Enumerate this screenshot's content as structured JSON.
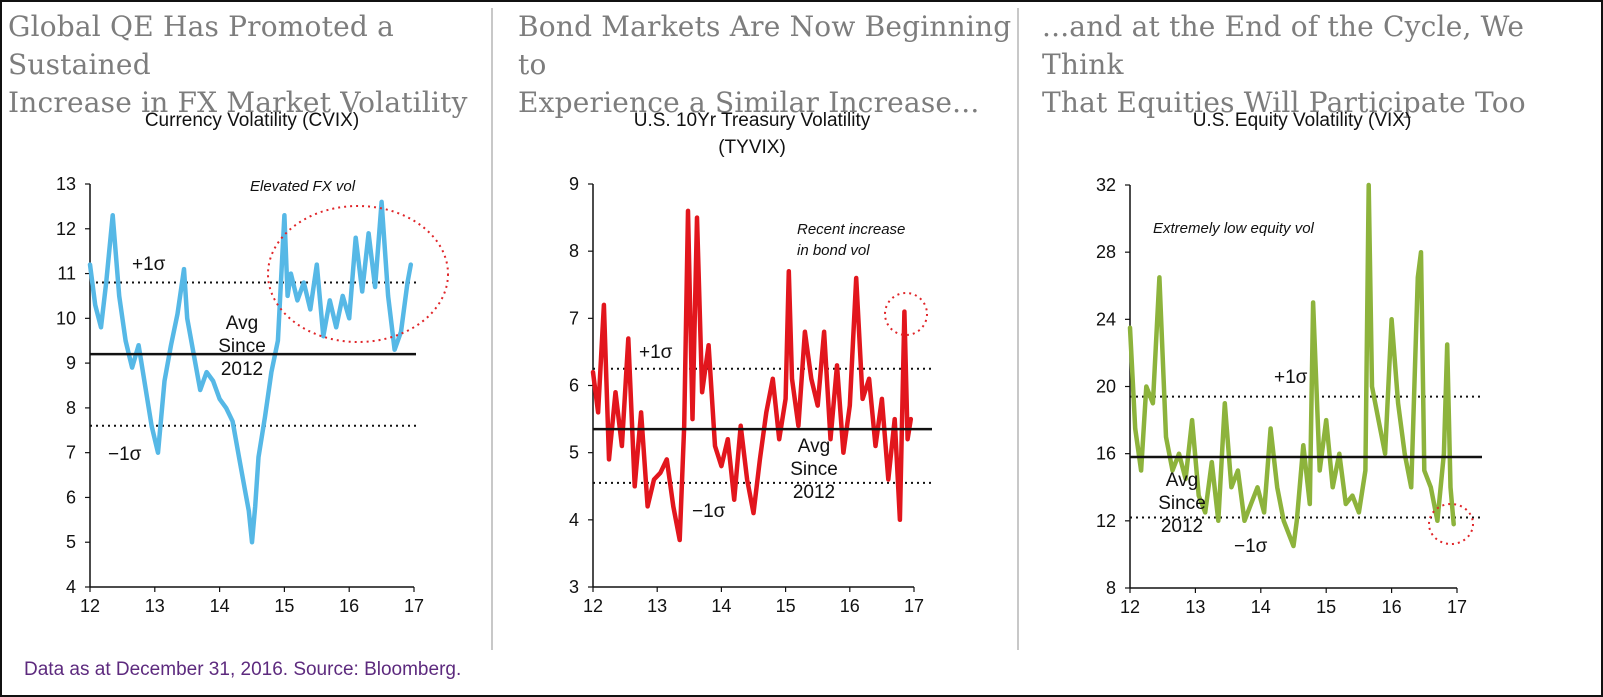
{
  "headings": [
    [
      "Global QE Has Promoted a Sustained",
      "Increase in FX Market Volatility"
    ],
    [
      "Bond Markets Are Now Beginning to",
      "Experience a Similar Increase..."
    ],
    [
      "...and at the End of the Cycle, We Think",
      "That Equities Will Participate Too"
    ]
  ],
  "footer": "Data as at December 31, 2016. Source: Bloomberg.",
  "colors": {
    "cvix": "#56b8e6",
    "tyvix": "#e2161d",
    "vix": "#8db33c",
    "highlight": "#e0262a",
    "footer": "#5d2a7e"
  },
  "chart_data": [
    {
      "type": "line",
      "title": [
        "Currency Volatility (CVIX)"
      ],
      "series": [
        {
          "name": "",
          "x": [
            2012.0,
            2012.08,
            2012.17,
            2012.25,
            2012.35,
            2012.45,
            2012.55,
            2012.65,
            2012.75,
            2012.85,
            2012.95,
            2013.05,
            2013.15,
            2013.25,
            2013.35,
            2013.45,
            2013.5,
            2013.6,
            2013.7,
            2013.8,
            2013.9,
            2014.0,
            2014.1,
            2014.2,
            2014.3,
            2014.4,
            2014.45,
            2014.5,
            2014.55,
            2014.6,
            2014.7,
            2014.8,
            2014.9,
            2015.0,
            2015.05,
            2015.1,
            2015.2,
            2015.3,
            2015.4,
            2015.5,
            2015.6,
            2015.7,
            2015.8,
            2015.9,
            2016.0,
            2016.1,
            2016.2,
            2016.3,
            2016.4,
            2016.5,
            2016.6,
            2016.7,
            2016.8,
            2016.9,
            2016.95
          ],
          "y": [
            11.2,
            10.3,
            9.8,
            10.8,
            12.3,
            10.5,
            9.5,
            8.9,
            9.4,
            8.5,
            7.6,
            7.0,
            8.6,
            9.4,
            10.1,
            11.1,
            10.0,
            9.2,
            8.4,
            8.8,
            8.6,
            8.2,
            8.0,
            7.7,
            6.9,
            6.1,
            5.7,
            5.0,
            5.8,
            6.9,
            7.8,
            8.8,
            9.5,
            12.3,
            10.5,
            11.0,
            10.4,
            10.8,
            10.2,
            11.2,
            9.6,
            10.4,
            9.8,
            10.5,
            10.0,
            11.8,
            10.6,
            11.9,
            10.7,
            12.6,
            10.5,
            9.3,
            9.7,
            10.8,
            11.2
          ]
        }
      ],
      "xticks": [
        "12",
        "13",
        "14",
        "15",
        "16",
        "17"
      ],
      "yticks": [
        "4",
        "5",
        "6",
        "7",
        "8",
        "9",
        "10",
        "11",
        "12",
        "13"
      ],
      "xlim": [
        2012,
        2017
      ],
      "ylim": [
        4,
        13
      ],
      "avg": 9.2,
      "plus1": 10.8,
      "minus1": 7.6,
      "annotations": {
        "plus_sigma": "+1σ",
        "minus_sigma": "−1σ",
        "avg": [
          "Avg",
          "Since",
          "2012"
        ],
        "callout": [
          "Elevated FX vol"
        ]
      }
    },
    {
      "type": "line",
      "title": [
        "U.S. 10Yr Treasury Volatility",
        "(TYVIX)"
      ],
      "series": [
        {
          "name": "",
          "x": [
            2012.0,
            2012.08,
            2012.17,
            2012.25,
            2012.35,
            2012.45,
            2012.55,
            2012.65,
            2012.75,
            2012.85,
            2012.95,
            2013.05,
            2013.15,
            2013.25,
            2013.35,
            2013.42,
            2013.48,
            2013.55,
            2013.62,
            2013.7,
            2013.8,
            2013.9,
            2014.0,
            2014.1,
            2014.2,
            2014.3,
            2014.4,
            2014.5,
            2014.6,
            2014.7,
            2014.8,
            2014.9,
            2015.0,
            2015.05,
            2015.1,
            2015.2,
            2015.3,
            2015.4,
            2015.5,
            2015.6,
            2015.7,
            2015.8,
            2015.9,
            2016.0,
            2016.1,
            2016.2,
            2016.3,
            2016.4,
            2016.5,
            2016.6,
            2016.7,
            2016.78,
            2016.85,
            2016.9,
            2016.95
          ],
          "y": [
            6.2,
            5.6,
            7.2,
            4.9,
            5.9,
            5.1,
            6.7,
            4.5,
            5.6,
            4.2,
            4.6,
            4.7,
            4.9,
            4.2,
            3.7,
            5.4,
            8.6,
            5.5,
            8.5,
            5.9,
            6.6,
            5.1,
            4.8,
            5.2,
            4.3,
            5.4,
            4.6,
            4.1,
            4.9,
            5.6,
            6.1,
            5.2,
            5.8,
            7.7,
            6.1,
            5.4,
            6.8,
            6.1,
            5.7,
            6.8,
            5.2,
            6.3,
            5.0,
            5.7,
            7.6,
            5.8,
            6.1,
            5.1,
            5.8,
            4.6,
            5.5,
            4.0,
            7.1,
            5.2,
            5.5
          ]
        }
      ],
      "xticks": [
        "12",
        "13",
        "14",
        "15",
        "16",
        "17"
      ],
      "yticks": [
        "3",
        "4",
        "5",
        "6",
        "7",
        "8",
        "9"
      ],
      "xlim": [
        2012,
        2017
      ],
      "ylim": [
        3,
        9
      ],
      "avg": 5.35,
      "plus1": 6.25,
      "minus1": 4.55,
      "annotations": {
        "plus_sigma": "+1σ",
        "minus_sigma": "−1σ",
        "avg": [
          "Avg",
          "Since",
          "2012"
        ],
        "callout": [
          "Recent increase",
          "in bond vol"
        ]
      }
    },
    {
      "type": "line",
      "title": [
        "U.S. Equity Volatility (VIX)"
      ],
      "series": [
        {
          "name": "",
          "x": [
            2012.0,
            2012.08,
            2012.17,
            2012.25,
            2012.35,
            2012.45,
            2012.55,
            2012.65,
            2012.75,
            2012.85,
            2012.95,
            2013.05,
            2013.15,
            2013.25,
            2013.35,
            2013.45,
            2013.55,
            2013.65,
            2013.75,
            2013.85,
            2013.95,
            2014.05,
            2014.15,
            2014.25,
            2014.35,
            2014.45,
            2014.5,
            2014.55,
            2014.65,
            2014.75,
            2014.8,
            2014.9,
            2015.0,
            2015.1,
            2015.2,
            2015.3,
            2015.4,
            2015.5,
            2015.6,
            2015.65,
            2015.7,
            2015.8,
            2015.9,
            2016.0,
            2016.1,
            2016.2,
            2016.3,
            2016.4,
            2016.45,
            2016.5,
            2016.6,
            2016.7,
            2016.8,
            2016.85,
            2016.9,
            2016.95
          ],
          "y": [
            23.5,
            17.5,
            15.0,
            20.0,
            19.0,
            26.5,
            17.0,
            15.0,
            16.0,
            14.5,
            18.0,
            13.5,
            12.5,
            15.5,
            12.0,
            19.0,
            14.0,
            15.0,
            12.0,
            13.0,
            14.0,
            12.5,
            17.5,
            14.0,
            12.0,
            11.0,
            10.5,
            12.0,
            16.5,
            13.0,
            25.0,
            15.0,
            18.0,
            14.0,
            16.0,
            13.0,
            13.5,
            12.5,
            15.0,
            32.0,
            20.0,
            18.0,
            16.0,
            24.0,
            19.0,
            16.0,
            14.0,
            26.5,
            28.0,
            15.0,
            14.0,
            12.0,
            16.0,
            22.5,
            14.0,
            11.8
          ]
        }
      ],
      "xticks": [
        "12",
        "13",
        "14",
        "15",
        "16",
        "17"
      ],
      "yticks": [
        "8",
        "12",
        "16",
        "20",
        "24",
        "28",
        "32"
      ],
      "xlim": [
        2012,
        2017
      ],
      "ylim": [
        8,
        32
      ],
      "avg": 15.8,
      "plus1": 19.4,
      "minus1": 12.2,
      "annotations": {
        "plus_sigma": "+1σ",
        "minus_sigma": "−1σ",
        "avg": [
          "Avg",
          "Since",
          "2012"
        ],
        "callout": [
          "Extremely low equity vol"
        ]
      }
    }
  ]
}
